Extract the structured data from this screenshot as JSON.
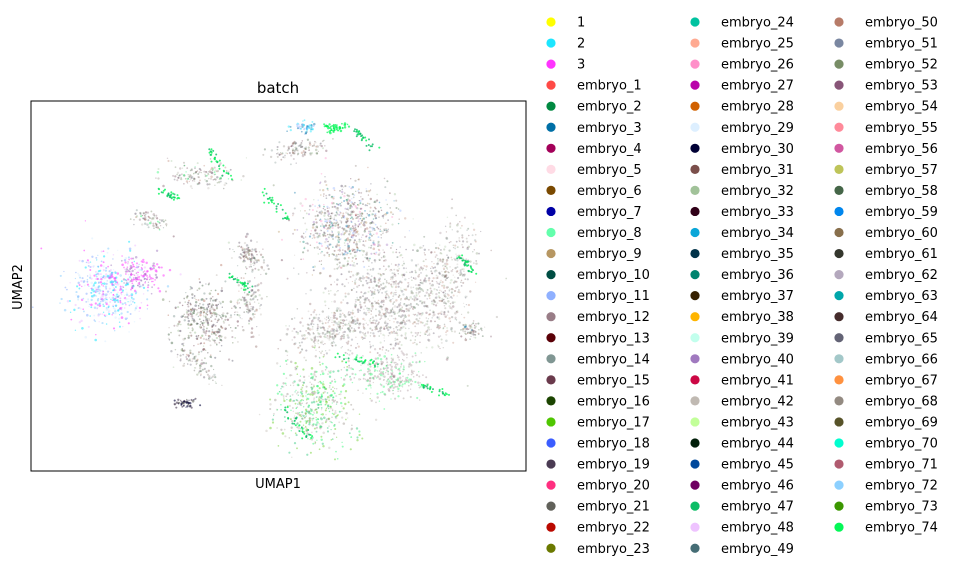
{
  "chart_data": {
    "type": "scatter",
    "title": "batch",
    "xlabel": "UMAP1",
    "ylabel": "UMAP2",
    "xticks": [],
    "yticks": [],
    "grid": false,
    "legend_placement": "right-outside",
    "legend_columns": 3,
    "legend": [
      {
        "name": "1",
        "color": "#ffff00"
      },
      {
        "name": "2",
        "color": "#1ce6ff"
      },
      {
        "name": "3",
        "color": "#ff34ff"
      },
      {
        "name": "embryo_1",
        "color": "#ff4a46"
      },
      {
        "name": "embryo_2",
        "color": "#008941"
      },
      {
        "name": "embryo_3",
        "color": "#006fa6"
      },
      {
        "name": "embryo_4",
        "color": "#a30059"
      },
      {
        "name": "embryo_5",
        "color": "#ffdbe5"
      },
      {
        "name": "embryo_6",
        "color": "#7a4900"
      },
      {
        "name": "embryo_7",
        "color": "#0000a6"
      },
      {
        "name": "embryo_8",
        "color": "#63ffac"
      },
      {
        "name": "embryo_9",
        "color": "#b79762"
      },
      {
        "name": "embryo_10",
        "color": "#004d43"
      },
      {
        "name": "embryo_11",
        "color": "#8fb0ff"
      },
      {
        "name": "embryo_12",
        "color": "#997d87"
      },
      {
        "name": "embryo_13",
        "color": "#5a0007"
      },
      {
        "name": "embryo_14",
        "color": "#809693"
      },
      {
        "name": "embryo_15",
        "color": "#6a3a4c"
      },
      {
        "name": "embryo_16",
        "color": "#1b4400"
      },
      {
        "name": "embryo_17",
        "color": "#4fc601"
      },
      {
        "name": "embryo_18",
        "color": "#3b5dff"
      },
      {
        "name": "embryo_19",
        "color": "#4a3b53"
      },
      {
        "name": "embryo_20",
        "color": "#ff2f80"
      },
      {
        "name": "embryo_21",
        "color": "#61615a"
      },
      {
        "name": "embryo_22",
        "color": "#ba0900"
      },
      {
        "name": "embryo_23",
        "color": "#6b7900"
      },
      {
        "name": "embryo_24",
        "color": "#00c2a0"
      },
      {
        "name": "embryo_25",
        "color": "#ffaa92"
      },
      {
        "name": "embryo_26",
        "color": "#ff90c9"
      },
      {
        "name": "embryo_27",
        "color": "#b903aa"
      },
      {
        "name": "embryo_28",
        "color": "#d16100"
      },
      {
        "name": "embryo_29",
        "color": "#ddefff"
      },
      {
        "name": "embryo_30",
        "color": "#000035"
      },
      {
        "name": "embryo_31",
        "color": "#7b4f4b"
      },
      {
        "name": "embryo_32",
        "color": "#a1c299"
      },
      {
        "name": "embryo_33",
        "color": "#300018"
      },
      {
        "name": "embryo_34",
        "color": "#0aa6d8"
      },
      {
        "name": "embryo_35",
        "color": "#013349"
      },
      {
        "name": "embryo_36",
        "color": "#00846f"
      },
      {
        "name": "embryo_37",
        "color": "#372101"
      },
      {
        "name": "embryo_38",
        "color": "#ffb500"
      },
      {
        "name": "embryo_39",
        "color": "#c2ffed"
      },
      {
        "name": "embryo_40",
        "color": "#a079bf"
      },
      {
        "name": "embryo_41",
        "color": "#cc0744"
      },
      {
        "name": "embryo_42",
        "color": "#c0b9b2"
      },
      {
        "name": "embryo_43",
        "color": "#c2ff99"
      },
      {
        "name": "embryo_44",
        "color": "#001e09"
      },
      {
        "name": "embryo_45",
        "color": "#00489c"
      },
      {
        "name": "embryo_46",
        "color": "#6f0062"
      },
      {
        "name": "embryo_47",
        "color": "#0cbd66"
      },
      {
        "name": "embryo_48",
        "color": "#eec3ff"
      },
      {
        "name": "embryo_49",
        "color": "#456d75"
      },
      {
        "name": "embryo_50",
        "color": "#b77b68"
      },
      {
        "name": "embryo_51",
        "color": "#7a87a1"
      },
      {
        "name": "embryo_52",
        "color": "#788d66"
      },
      {
        "name": "embryo_53",
        "color": "#885578"
      },
      {
        "name": "embryo_54",
        "color": "#fad09f"
      },
      {
        "name": "embryo_55",
        "color": "#ff8a9a"
      },
      {
        "name": "embryo_56",
        "color": "#d157a0"
      },
      {
        "name": "embryo_57",
        "color": "#bec459"
      },
      {
        "name": "embryo_58",
        "color": "#456648"
      },
      {
        "name": "embryo_59",
        "color": "#0086ed"
      },
      {
        "name": "embryo_60",
        "color": "#886f4c"
      },
      {
        "name": "embryo_61",
        "color": "#34362d"
      },
      {
        "name": "embryo_62",
        "color": "#b4a8bd"
      },
      {
        "name": "embryo_63",
        "color": "#00a6aa"
      },
      {
        "name": "embryo_64",
        "color": "#452c2c"
      },
      {
        "name": "embryo_65",
        "color": "#636375"
      },
      {
        "name": "embryo_66",
        "color": "#a3c8c9"
      },
      {
        "name": "embryo_67",
        "color": "#ff913f"
      },
      {
        "name": "embryo_68",
        "color": "#938a81"
      },
      {
        "name": "embryo_69",
        "color": "#575329"
      },
      {
        "name": "embryo_70",
        "color": "#00fecf"
      },
      {
        "name": "embryo_71",
        "color": "#b05b6f"
      },
      {
        "name": "embryo_72",
        "color": "#8cd0ff"
      },
      {
        "name": "embryo_73",
        "color": "#3b9700"
      },
      {
        "name": "embryo_74",
        "color": "#04f757"
      }
    ]
  }
}
